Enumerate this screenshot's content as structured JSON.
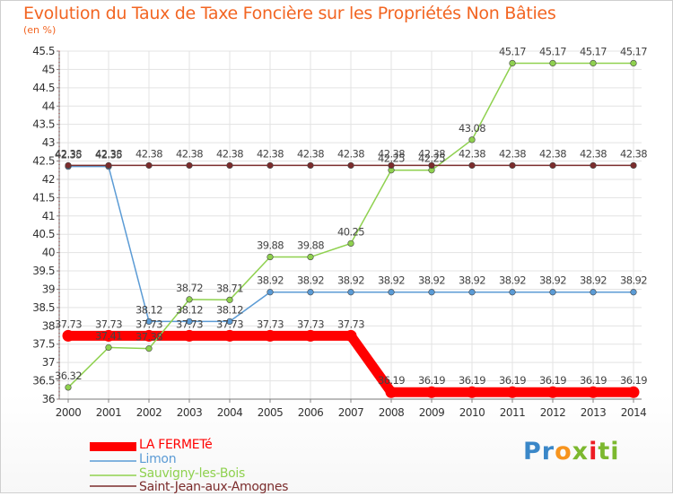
{
  "title": "Evolution du Taux de Taxe Foncière sur les Propriétés Non Bâties",
  "unit": "(en %)",
  "logo": {
    "p": "Pr",
    "o": "o",
    "x": "x",
    "i": "i",
    "ti": "ti",
    "colors": [
      "#3a87c8",
      "#f7941d",
      "#7cb82f",
      "#ed1c24"
    ]
  },
  "chart_data": {
    "type": "line",
    "x": [
      "2000",
      "2001",
      "2002",
      "2003",
      "2004",
      "2005",
      "2006",
      "2007",
      "2008",
      "2009",
      "2010",
      "2011",
      "2012",
      "2013",
      "2014"
    ],
    "ylim": [
      36,
      45.5
    ],
    "yticks": [
      "36",
      "36.5",
      "37",
      "37.5",
      "38",
      "38.5",
      "39",
      "39.5",
      "40",
      "40.5",
      "41",
      "41.5",
      "42",
      "42.5",
      "43",
      "43.5",
      "44",
      "44.5",
      "45",
      "45.5"
    ],
    "series": [
      {
        "name": "LA FERMETé",
        "color": "#ff0000",
        "values": [
          37.73,
          37.73,
          37.73,
          37.73,
          37.73,
          37.73,
          37.73,
          37.73,
          36.19,
          36.19,
          36.19,
          36.19,
          36.19,
          36.19,
          36.19
        ],
        "labels": [
          "37.73",
          "37.73",
          "37.73",
          "37.73",
          "37.73",
          "37.73",
          "37.73",
          "37.73",
          "36.19",
          "36.19",
          "36.19",
          "36.19",
          "36.19",
          "36.19",
          "36.19"
        ]
      },
      {
        "name": "Limon",
        "color": "#5b9bd5",
        "values": [
          42.35,
          42.35,
          38.12,
          38.12,
          38.12,
          38.92,
          38.92,
          38.92,
          38.92,
          38.92,
          38.92,
          38.92,
          38.92,
          38.92,
          38.92
        ],
        "labels": [
          "42.35",
          "42.35",
          "38.12",
          "38.12",
          "38.12",
          "38.92",
          "38.92",
          "38.92",
          "38.92",
          "38.92",
          "38.92",
          "38.92",
          "38.92",
          "38.92",
          "38.92"
        ]
      },
      {
        "name": "Sauvigny-les-Bois",
        "color": "#8fd14f",
        "values": [
          36.32,
          37.41,
          37.38,
          38.72,
          38.71,
          39.88,
          39.88,
          40.25,
          42.25,
          42.25,
          43.08,
          45.17,
          45.17,
          45.17,
          45.17
        ],
        "labels": [
          "36.32",
          "37.41",
          "37.38",
          "38.72",
          "38.71",
          "39.88",
          "39.88",
          "40.25",
          "42.25",
          "42.25",
          "43.08",
          "45.17",
          "45.17",
          "45.17",
          "45.17"
        ]
      },
      {
        "name": "Saint-Jean-aux-Amognes",
        "color": "#7b2c2c",
        "values": [
          42.38,
          42.38,
          42.38,
          42.38,
          42.38,
          42.38,
          42.38,
          42.38,
          42.38,
          42.38,
          42.38,
          42.38,
          42.38,
          42.38,
          42.38
        ],
        "labels": [
          "42.38",
          "42.38",
          "42.38",
          "42.38",
          "42.38",
          "42.38",
          "42.38",
          "42.38",
          "42.38",
          "42.38",
          "42.38",
          "42.38",
          "42.38",
          "42.38",
          "42.38"
        ]
      }
    ]
  }
}
